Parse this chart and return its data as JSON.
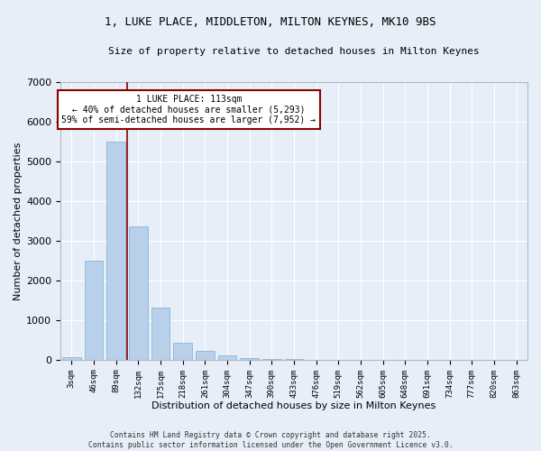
{
  "title_line1": "1, LUKE PLACE, MIDDLETON, MILTON KEYNES, MK10 9BS",
  "title_line2": "Size of property relative to detached houses in Milton Keynes",
  "xlabel": "Distribution of detached houses by size in Milton Keynes",
  "ylabel": "Number of detached properties",
  "categories": [
    "3sqm",
    "46sqm",
    "89sqm",
    "132sqm",
    "175sqm",
    "218sqm",
    "261sqm",
    "304sqm",
    "347sqm",
    "390sqm",
    "433sqm",
    "476sqm",
    "519sqm",
    "562sqm",
    "605sqm",
    "648sqm",
    "691sqm",
    "734sqm",
    "777sqm",
    "820sqm",
    "863sqm"
  ],
  "values": [
    75,
    2500,
    5500,
    3370,
    1320,
    430,
    220,
    100,
    45,
    20,
    10,
    5,
    3,
    2,
    1,
    1,
    0,
    0,
    0,
    0,
    0
  ],
  "bar_color": "#b8d0ea",
  "bar_edge_color": "#7aafd4",
  "background_color": "#e8eef8",
  "grid_color": "#ffffff",
  "vline_color": "#8b0000",
  "annotation_text": "1 LUKE PLACE: 113sqm\n← 40% of detached houses are smaller (5,293)\n59% of semi-detached houses are larger (7,952) →",
  "annotation_box_facecolor": "#ffffff",
  "annotation_box_edgecolor": "#8b0000",
  "ylim": [
    0,
    7000
  ],
  "yticks": [
    0,
    1000,
    2000,
    3000,
    4000,
    5000,
    6000,
    7000
  ],
  "footer_line1": "Contains HM Land Registry data © Crown copyright and database right 2025.",
  "footer_line2": "Contains public sector information licensed under the Open Government Licence v3.0."
}
